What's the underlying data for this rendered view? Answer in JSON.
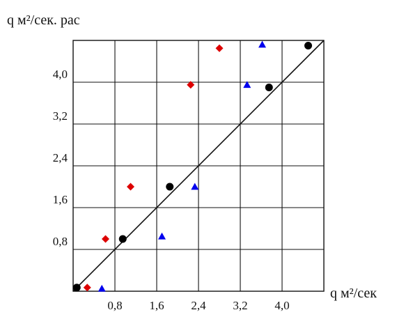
{
  "chart_data": {
    "type": "scatter",
    "title": "",
    "ylabel": "q м²/сек. рас",
    "xlabel": "q м²/сек",
    "xlim": [
      0,
      4.8
    ],
    "ylim": [
      0,
      4.8
    ],
    "x_ticks": [
      "0,8",
      "1,6",
      "2,4",
      "3,2",
      "4,0"
    ],
    "x_tick_values": [
      0.8,
      1.6,
      2.4,
      3.2,
      4.0
    ],
    "y_ticks": [
      "0,8",
      "1,6",
      "2,4",
      "3,2",
      "4,0"
    ],
    "y_tick_values": [
      0.8,
      1.6,
      2.4,
      3.2,
      4.0
    ],
    "grid": true,
    "legend": "none",
    "reference_line": {
      "type": "diagonal",
      "from": [
        0,
        0
      ],
      "to": [
        4.8,
        4.8
      ]
    },
    "series": [
      {
        "marker": "circle",
        "color": "#000000",
        "points": [
          [
            0.07,
            0.07
          ],
          [
            0.95,
            1.0
          ],
          [
            1.85,
            2.0
          ],
          [
            3.75,
            3.9
          ],
          [
            4.5,
            4.7
          ]
        ]
      },
      {
        "marker": "diamond",
        "color": "#dd0000",
        "points": [
          [
            0.27,
            0.07
          ],
          [
            0.62,
            1.0
          ],
          [
            1.1,
            2.0
          ],
          [
            2.25,
            3.95
          ],
          [
            2.8,
            4.65
          ]
        ]
      },
      {
        "marker": "triangle",
        "color": "#0000ee",
        "points": [
          [
            0.55,
            0.05
          ],
          [
            1.7,
            1.05
          ],
          [
            2.33,
            2.0
          ],
          [
            3.33,
            3.95
          ],
          [
            3.62,
            4.72
          ]
        ]
      }
    ]
  }
}
